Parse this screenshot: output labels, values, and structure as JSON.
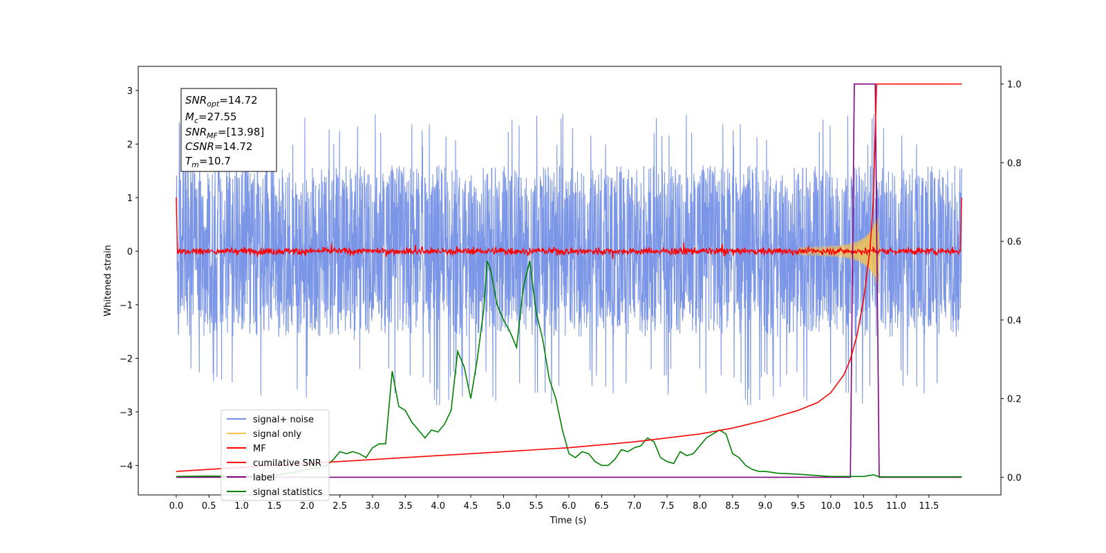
{
  "chart_data": {
    "type": "line",
    "xlabel": "Time (s)",
    "ylabel": "Whitened strain",
    "xlim": [
      -0.58,
      12.6
    ],
    "ylim": [
      -4.55,
      3.45
    ],
    "y2lim": [
      -0.045,
      1.045
    ],
    "x_ticks": [
      "0.0",
      "0.5",
      "1.0",
      "1.5",
      "2.0",
      "2.5",
      "3.0",
      "3.5",
      "4.0",
      "4.5",
      "5.0",
      "5.5",
      "6.0",
      "6.5",
      "7.0",
      "7.5",
      "8.0",
      "8.5",
      "9.0",
      "9.5",
      "10.0",
      "10.5",
      "11.0",
      "11.5"
    ],
    "y_ticks": [
      "−4",
      "−3",
      "−2",
      "−1",
      "0",
      "1",
      "2",
      "3"
    ],
    "y2_ticks": [
      "0.0",
      "0.2",
      "0.4",
      "0.6",
      "0.8",
      "1.0"
    ],
    "annotation": {
      "snr_opt_label": "SNR",
      "snr_opt_sub": "opt",
      "snr_opt_value": "=14.72",
      "mc_label": "M",
      "mc_sub": "c",
      "mc_value": "=27.55",
      "snr_mf_label": "SNR",
      "snr_mf_sub": "MF",
      "snr_mf_value": "=[13.98]",
      "csnr_label": "CSNR",
      "csnr_value": "=14.72",
      "tm_label": "T",
      "tm_sub": "m",
      "tm_value": "=10.7"
    },
    "series": [
      {
        "name": "signal+ noise",
        "axis": "left",
        "color": "#7590e6",
        "t_range": [
          0.0,
          12.0
        ],
        "envelope": {
          "upper_typical": 1.6,
          "upper_peak": 2.6,
          "lower_typical": -1.6,
          "lower_peak": -2.9
        }
      },
      {
        "name": "signal only",
        "axis": "left",
        "color": "#f5c451",
        "description_points": [
          [
            9.5,
            0.05
          ],
          [
            10.0,
            0.15
          ],
          [
            10.4,
            0.35
          ],
          [
            10.6,
            0.6
          ],
          [
            10.7,
            1.0
          ],
          [
            10.75,
            0.0
          ]
        ]
      },
      {
        "name": "MF",
        "axis": "left",
        "color": "#ff0000",
        "t_range": [
          0.0,
          12.0
        ],
        "band": [
          -0.12,
          0.12
        ],
        "edge_start": 1.0,
        "edge_end": 1.0
      },
      {
        "name": "cumilative SNR",
        "axis": "right",
        "color": "#ff0000",
        "points": [
          [
            0.0,
            0.015
          ],
          [
            1.0,
            0.025
          ],
          [
            2.0,
            0.035
          ],
          [
            3.0,
            0.045
          ],
          [
            4.0,
            0.055
          ],
          [
            5.0,
            0.065
          ],
          [
            6.0,
            0.075
          ],
          [
            7.0,
            0.09
          ],
          [
            8.0,
            0.11
          ],
          [
            8.5,
            0.125
          ],
          [
            9.0,
            0.145
          ],
          [
            9.5,
            0.17
          ],
          [
            9.8,
            0.19
          ],
          [
            10.0,
            0.215
          ],
          [
            10.2,
            0.26
          ],
          [
            10.3,
            0.3
          ],
          [
            10.4,
            0.36
          ],
          [
            10.5,
            0.45
          ],
          [
            10.6,
            0.58
          ],
          [
            10.65,
            0.7
          ],
          [
            10.7,
            1.0
          ],
          [
            12.0,
            1.0
          ]
        ]
      },
      {
        "name": "label",
        "axis": "right",
        "color": "#800080",
        "points": [
          [
            0.0,
            0.0
          ],
          [
            10.3,
            0.0
          ],
          [
            10.36,
            1.0
          ],
          [
            10.68,
            1.0
          ],
          [
            10.74,
            0.0
          ],
          [
            12.0,
            0.0
          ]
        ]
      },
      {
        "name": "signal statistics",
        "axis": "right",
        "color": "#008000",
        "points": [
          [
            0.0,
            0.002
          ],
          [
            0.5,
            0.003
          ],
          [
            1.0,
            0.002
          ],
          [
            1.5,
            0.005
          ],
          [
            1.8,
            0.012
          ],
          [
            2.0,
            0.02
          ],
          [
            2.2,
            0.025
          ],
          [
            2.3,
            0.03
          ],
          [
            2.4,
            0.045
          ],
          [
            2.5,
            0.065
          ],
          [
            2.6,
            0.06
          ],
          [
            2.7,
            0.065
          ],
          [
            2.8,
            0.06
          ],
          [
            2.9,
            0.05
          ],
          [
            3.0,
            0.075
          ],
          [
            3.1,
            0.085
          ],
          [
            3.2,
            0.085
          ],
          [
            3.3,
            0.27
          ],
          [
            3.4,
            0.18
          ],
          [
            3.5,
            0.17
          ],
          [
            3.6,
            0.14
          ],
          [
            3.7,
            0.12
          ],
          [
            3.8,
            0.1
          ],
          [
            3.9,
            0.12
          ],
          [
            4.0,
            0.115
          ],
          [
            4.1,
            0.135
          ],
          [
            4.2,
            0.17
          ],
          [
            4.3,
            0.32
          ],
          [
            4.4,
            0.28
          ],
          [
            4.5,
            0.2
          ],
          [
            4.6,
            0.3
          ],
          [
            4.7,
            0.43
          ],
          [
            4.75,
            0.55
          ],
          [
            4.8,
            0.53
          ],
          [
            4.9,
            0.44
          ],
          [
            5.0,
            0.4
          ],
          [
            5.1,
            0.37
          ],
          [
            5.2,
            0.33
          ],
          [
            5.3,
            0.48
          ],
          [
            5.4,
            0.55
          ],
          [
            5.5,
            0.42
          ],
          [
            5.6,
            0.35
          ],
          [
            5.7,
            0.25
          ],
          [
            5.8,
            0.2
          ],
          [
            5.9,
            0.12
          ],
          [
            6.0,
            0.06
          ],
          [
            6.1,
            0.05
          ],
          [
            6.2,
            0.065
          ],
          [
            6.3,
            0.06
          ],
          [
            6.4,
            0.04
          ],
          [
            6.5,
            0.03
          ],
          [
            6.6,
            0.03
          ],
          [
            6.7,
            0.045
          ],
          [
            6.8,
            0.07
          ],
          [
            6.9,
            0.065
          ],
          [
            7.0,
            0.075
          ],
          [
            7.1,
            0.08
          ],
          [
            7.2,
            0.1
          ],
          [
            7.3,
            0.09
          ],
          [
            7.4,
            0.05
          ],
          [
            7.5,
            0.04
          ],
          [
            7.6,
            0.035
          ],
          [
            7.7,
            0.065
          ],
          [
            7.8,
            0.055
          ],
          [
            7.9,
            0.06
          ],
          [
            8.0,
            0.08
          ],
          [
            8.1,
            0.1
          ],
          [
            8.2,
            0.11
          ],
          [
            8.3,
            0.12
          ],
          [
            8.4,
            0.11
          ],
          [
            8.5,
            0.06
          ],
          [
            8.6,
            0.05
          ],
          [
            8.7,
            0.03
          ],
          [
            8.8,
            0.02
          ],
          [
            8.9,
            0.015
          ],
          [
            9.0,
            0.015
          ],
          [
            9.2,
            0.01
          ],
          [
            9.5,
            0.008
          ],
          [
            9.8,
            0.004
          ],
          [
            10.0,
            0.002
          ],
          [
            10.5,
            0.002
          ],
          [
            10.65,
            0.006
          ],
          [
            10.75,
            0.001
          ],
          [
            12.0,
            0.001
          ]
        ]
      }
    ],
    "legend": {
      "position": "lower-left",
      "entries": [
        {
          "label": "signal+ noise",
          "color": "#7590e6"
        },
        {
          "label": "signal only",
          "color": "#f5c451"
        },
        {
          "label": "MF",
          "color": "#ff0000"
        },
        {
          "label": "cumilative SNR",
          "color": "#ff0000"
        },
        {
          "label": "label",
          "color": "#800080"
        },
        {
          "label": "signal statistics",
          "color": "#008000"
        }
      ]
    }
  }
}
